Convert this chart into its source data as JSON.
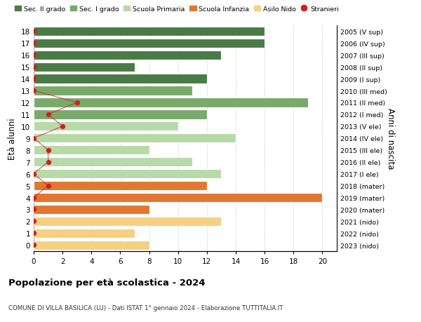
{
  "ages": [
    18,
    17,
    16,
    15,
    14,
    13,
    12,
    11,
    10,
    9,
    8,
    7,
    6,
    5,
    4,
    3,
    2,
    1,
    0
  ],
  "values": [
    16,
    16,
    13,
    7,
    12,
    11,
    19,
    12,
    10,
    14,
    8,
    11,
    13,
    12,
    20,
    8,
    13,
    7,
    8
  ],
  "right_labels": [
    "2005 (V sup)",
    "2006 (IV sup)",
    "2007 (III sup)",
    "2008 (II sup)",
    "2009 (I sup)",
    "2010 (III med)",
    "2011 (II med)",
    "2012 (I med)",
    "2013 (V ele)",
    "2014 (IV ele)",
    "2015 (III ele)",
    "2016 (II ele)",
    "2017 (I ele)",
    "2018 (mater)",
    "2019 (mater)",
    "2020 (mater)",
    "2021 (nido)",
    "2022 (nido)",
    "2023 (nido)"
  ],
  "bar_colors": [
    "#4a7a45",
    "#4a7a45",
    "#4a7a45",
    "#4a7a45",
    "#4a7a45",
    "#7aaa6b",
    "#7aaa6b",
    "#7aaa6b",
    "#b8d9a8",
    "#b8d9a8",
    "#b8d9a8",
    "#b8d9a8",
    "#b8d9a8",
    "#e07830",
    "#e07830",
    "#e07830",
    "#f5d080",
    "#f5d080",
    "#f5d080"
  ],
  "stranieri_data": {
    "18": 0,
    "17": 0,
    "16": 0,
    "15": 0,
    "14": 0,
    "13": 0,
    "12": 3,
    "11": 1,
    "10": 2,
    "9": 0,
    "8": 1,
    "7": 1,
    "6": 0,
    "5": 1,
    "4": 0,
    "3": 0,
    "2": 0,
    "1": 0,
    "0": 0
  },
  "ylabel": "Età alunni",
  "right_ylabel": "Anni di nascita",
  "title": "Popolazione per età scolastica - 2024",
  "subtitle": "COMUNE DI VILLA BASILICA (LU) - Dati ISTAT 1° gennaio 2024 - Elaborazione TUTTITALIA.IT",
  "xlim": [
    0,
    21
  ],
  "xticks": [
    0,
    2,
    4,
    6,
    8,
    10,
    12,
    14,
    16,
    18,
    20
  ],
  "legend_labels": [
    "Sec. II grado",
    "Sec. I grado",
    "Scuola Primaria",
    "Scuola Infanzia",
    "Asilo Nido",
    "Stranieri"
  ],
  "legend_colors": [
    "#4a7a45",
    "#7aaa6b",
    "#b8d9a8",
    "#e07830",
    "#f5d080",
    "#cc2222"
  ],
  "stranieri_color": "#cc2222",
  "grid_color": "#cccccc",
  "background_color": "#ffffff"
}
